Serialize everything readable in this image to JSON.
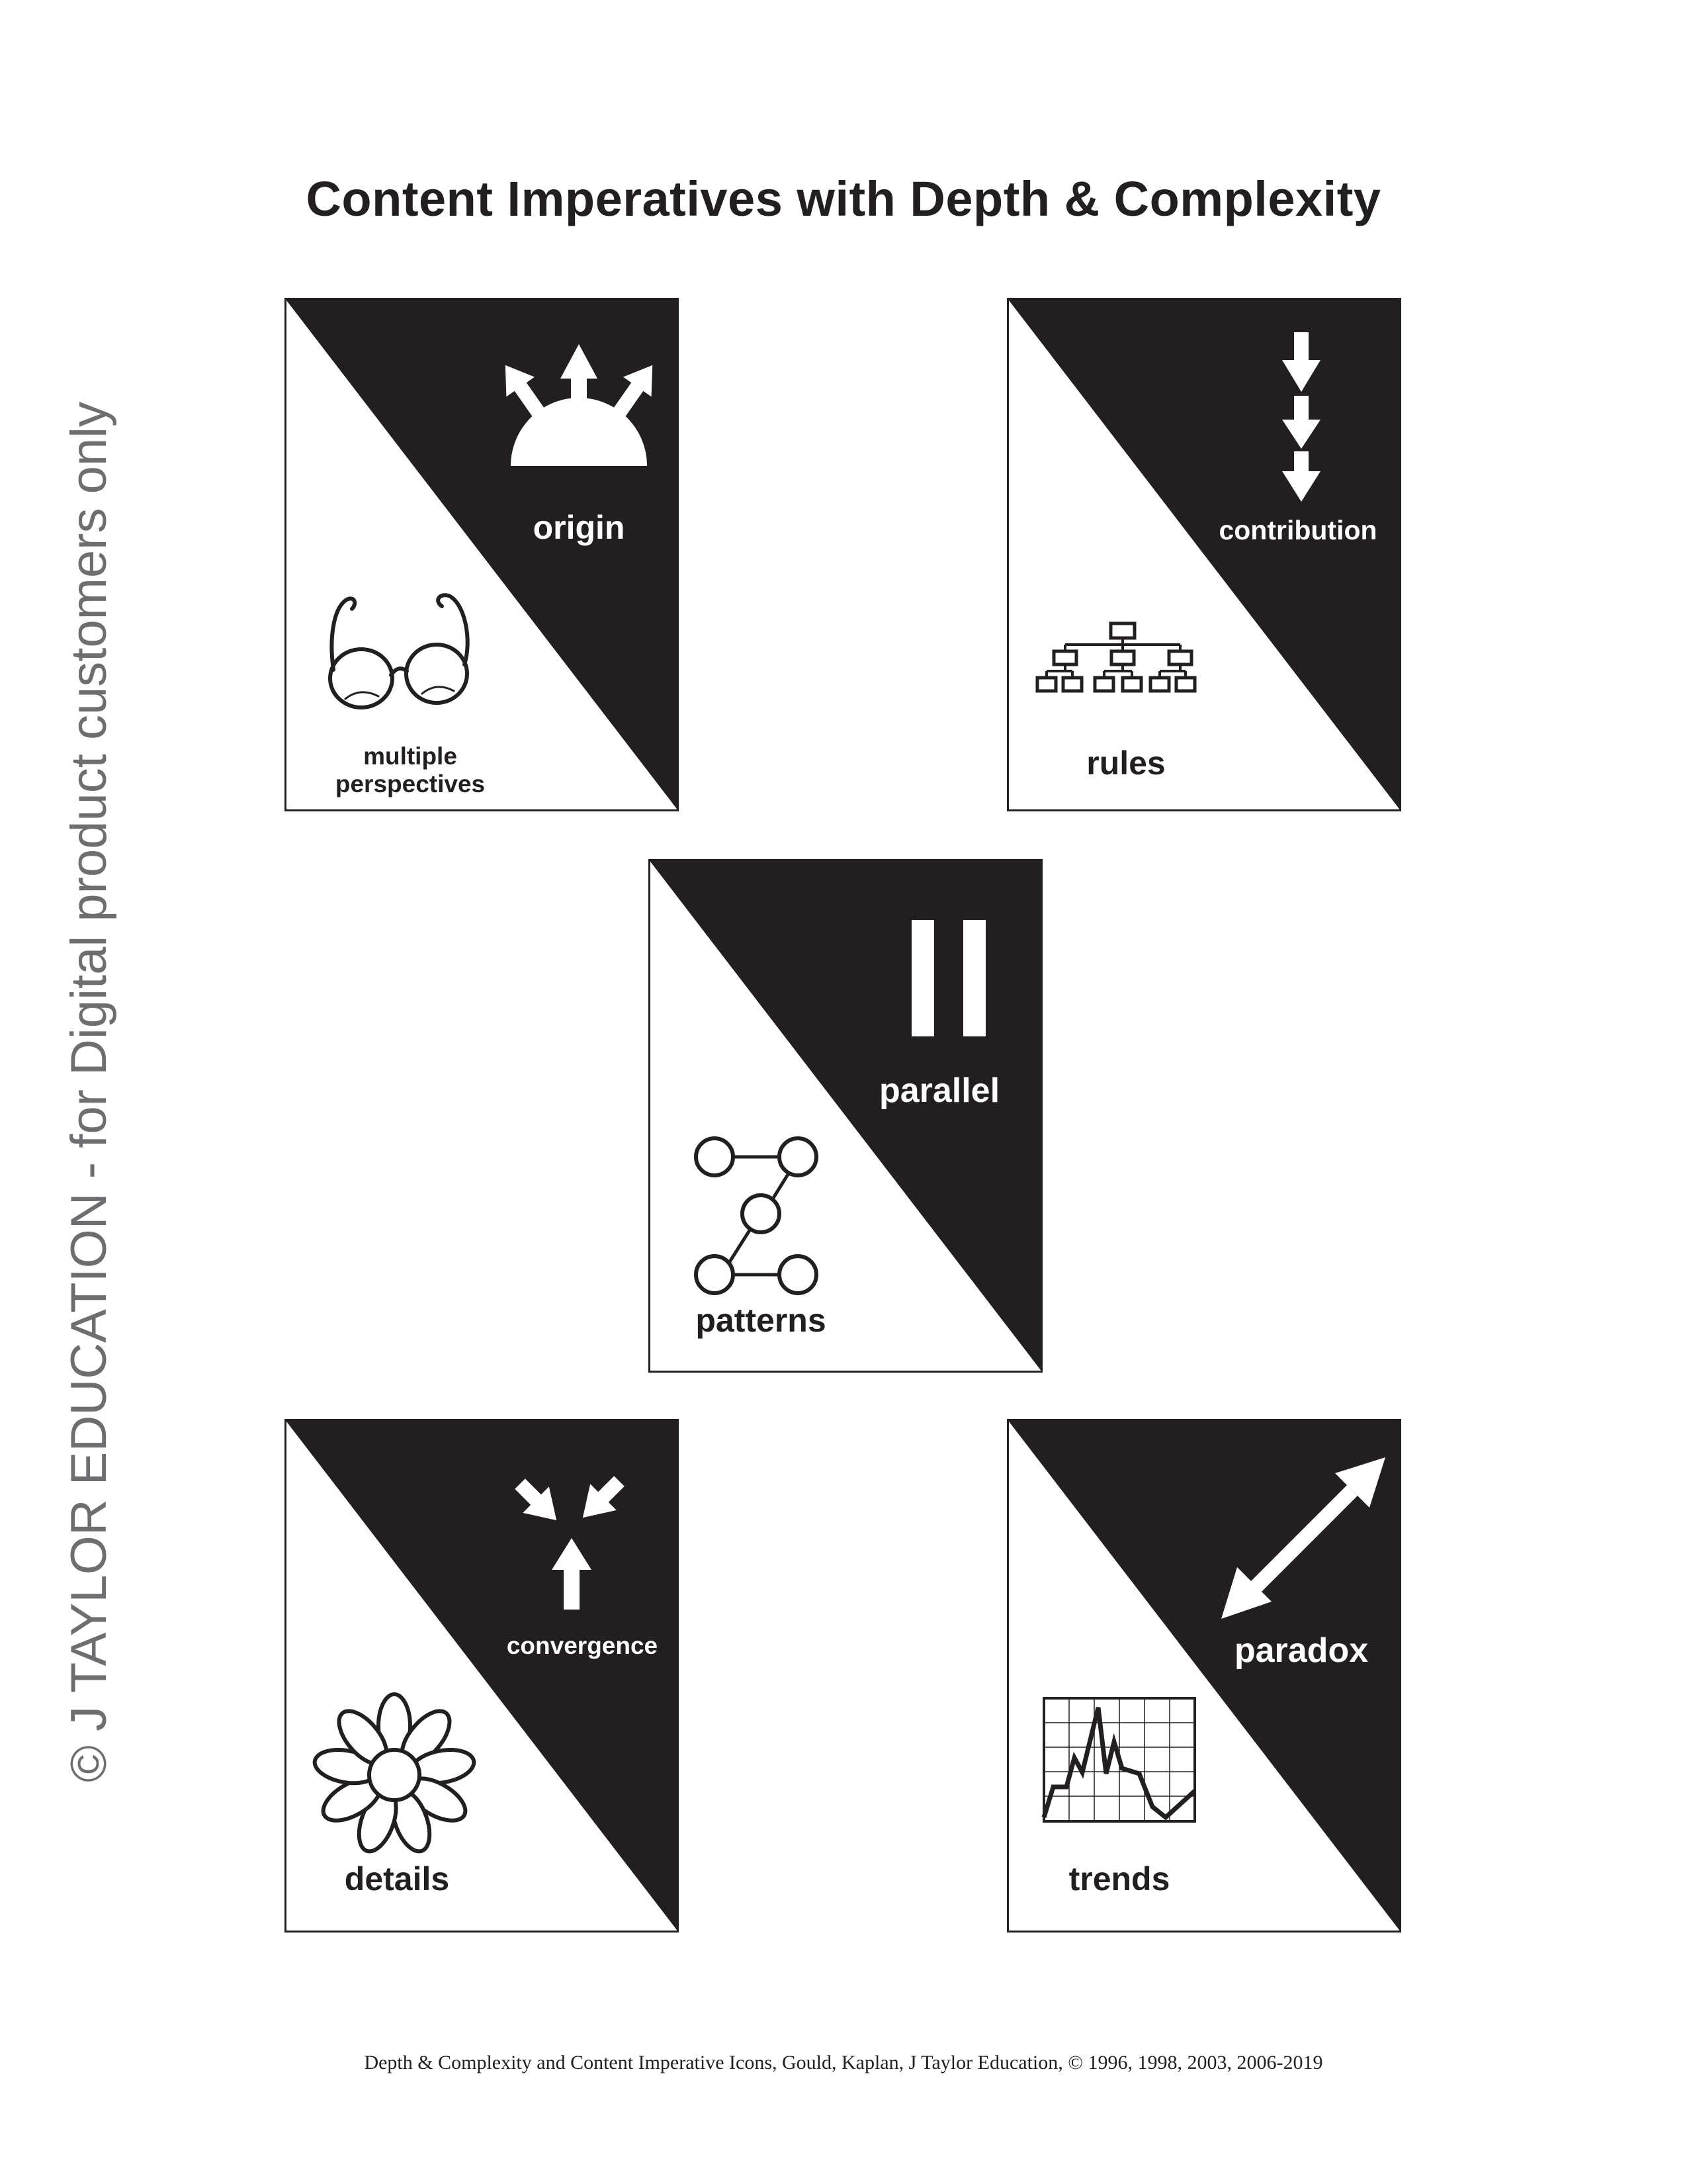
{
  "title": "Content Imperatives with Depth & Complexity",
  "watermark": "© J TAYLOR EDUCATION - for Digital product customers only",
  "colors": {
    "ink": "#231f20",
    "watermark": "#6d6e71",
    "paper": "#ffffff"
  },
  "cards": [
    {
      "top_label": "origin",
      "top_icon": "sunrise-arrows-icon",
      "bottom_label_line1": "multiple",
      "bottom_label_line2": "perspectives",
      "bottom_icon": "eyeglasses-icon"
    },
    {
      "top_label": "contribution",
      "top_icon": "stacked-down-arrows-icon",
      "bottom_label": "rules",
      "bottom_icon": "org-chart-icon"
    },
    {
      "top_label": "parallel",
      "top_icon": "parallel-bars-icon",
      "bottom_label": "patterns",
      "bottom_icon": "connected-circles-icon"
    },
    {
      "top_label": "convergence",
      "top_icon": "converging-arrows-icon",
      "bottom_label": "details",
      "bottom_icon": "flower-icon"
    },
    {
      "top_label": "paradox",
      "top_icon": "double-headed-arrow-icon",
      "bottom_label": "trends",
      "bottom_icon": "line-graph-icon"
    }
  ],
  "footer": "Depth & Complexity and Content Imperative Icons, Gould, Kaplan, J Taylor Education, © 1996, 1998, 2003, 2006-2019"
}
